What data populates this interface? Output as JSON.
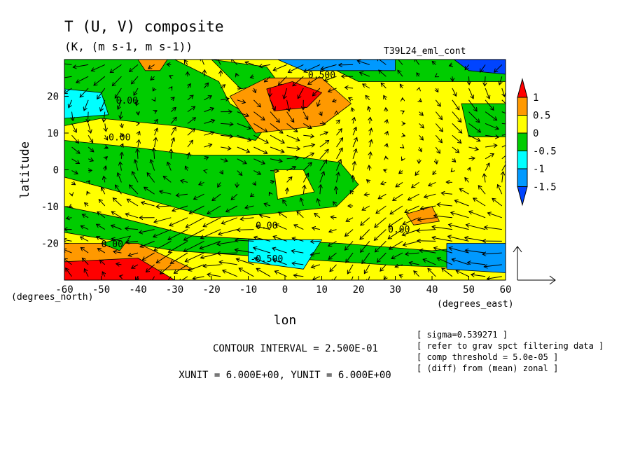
{
  "chart_data": {
    "type": "contour-vector-map",
    "title": "T (U, V) composite",
    "units": "(K, (m s-1, m s-1))",
    "run_label": "T39L24_eml_cont",
    "xlabel": "lon",
    "ylabel": "latitude",
    "x_unit_label": "(degrees_east)",
    "y_unit_label": "(degrees_north)",
    "x_ticks": [
      -60,
      -50,
      -40,
      -30,
      -20,
      -10,
      0,
      10,
      20,
      30,
      40,
      50,
      60
    ],
    "y_ticks": [
      -20,
      -10,
      0,
      10,
      20
    ],
    "xlim": [
      -60,
      60
    ],
    "ylim": [
      -30,
      30
    ],
    "colorbar": {
      "labels": [
        "1",
        "0.5",
        "0",
        "-0.5",
        "-1",
        "-1.5"
      ],
      "levels": [
        1.0,
        0.5,
        0.0,
        -0.5,
        -1.0,
        -1.5
      ],
      "colors": [
        "#ff0000",
        "#ff9900",
        "#ffff00",
        "#00cc00",
        "#00ffff",
        "#0099ff",
        "#0044ff"
      ]
    },
    "contour_labels": [
      {
        "text": "0.500",
        "lon": 10,
        "lat": 25
      },
      {
        "text": "0.00",
        "lon": -43,
        "lat": 18
      },
      {
        "text": "0.00",
        "lon": -45,
        "lat": 8
      },
      {
        "text": "0.00",
        "lon": -5,
        "lat": -16
      },
      {
        "text": "0.00",
        "lon": 31,
        "lat": -17
      },
      {
        "text": "0.00",
        "lon": -47,
        "lat": -21
      },
      {
        "text": "-0.500",
        "lon": -5,
        "lat": -25
      }
    ],
    "grid": false,
    "vector_field": true,
    "footer": {
      "contour_interval": "CONTOUR INTERVAL = 2.500E-01",
      "units_line": "XUNIT = 6.000E+00, YUNIT = 6.000E+00"
    },
    "notes": [
      "[ sigma=0.539271 ]",
      "[ refer to grav spct filtering data ]",
      "[ comp threshold = 5.0e-05 ]",
      "[ (diff) from (mean) zonal ]"
    ]
  }
}
